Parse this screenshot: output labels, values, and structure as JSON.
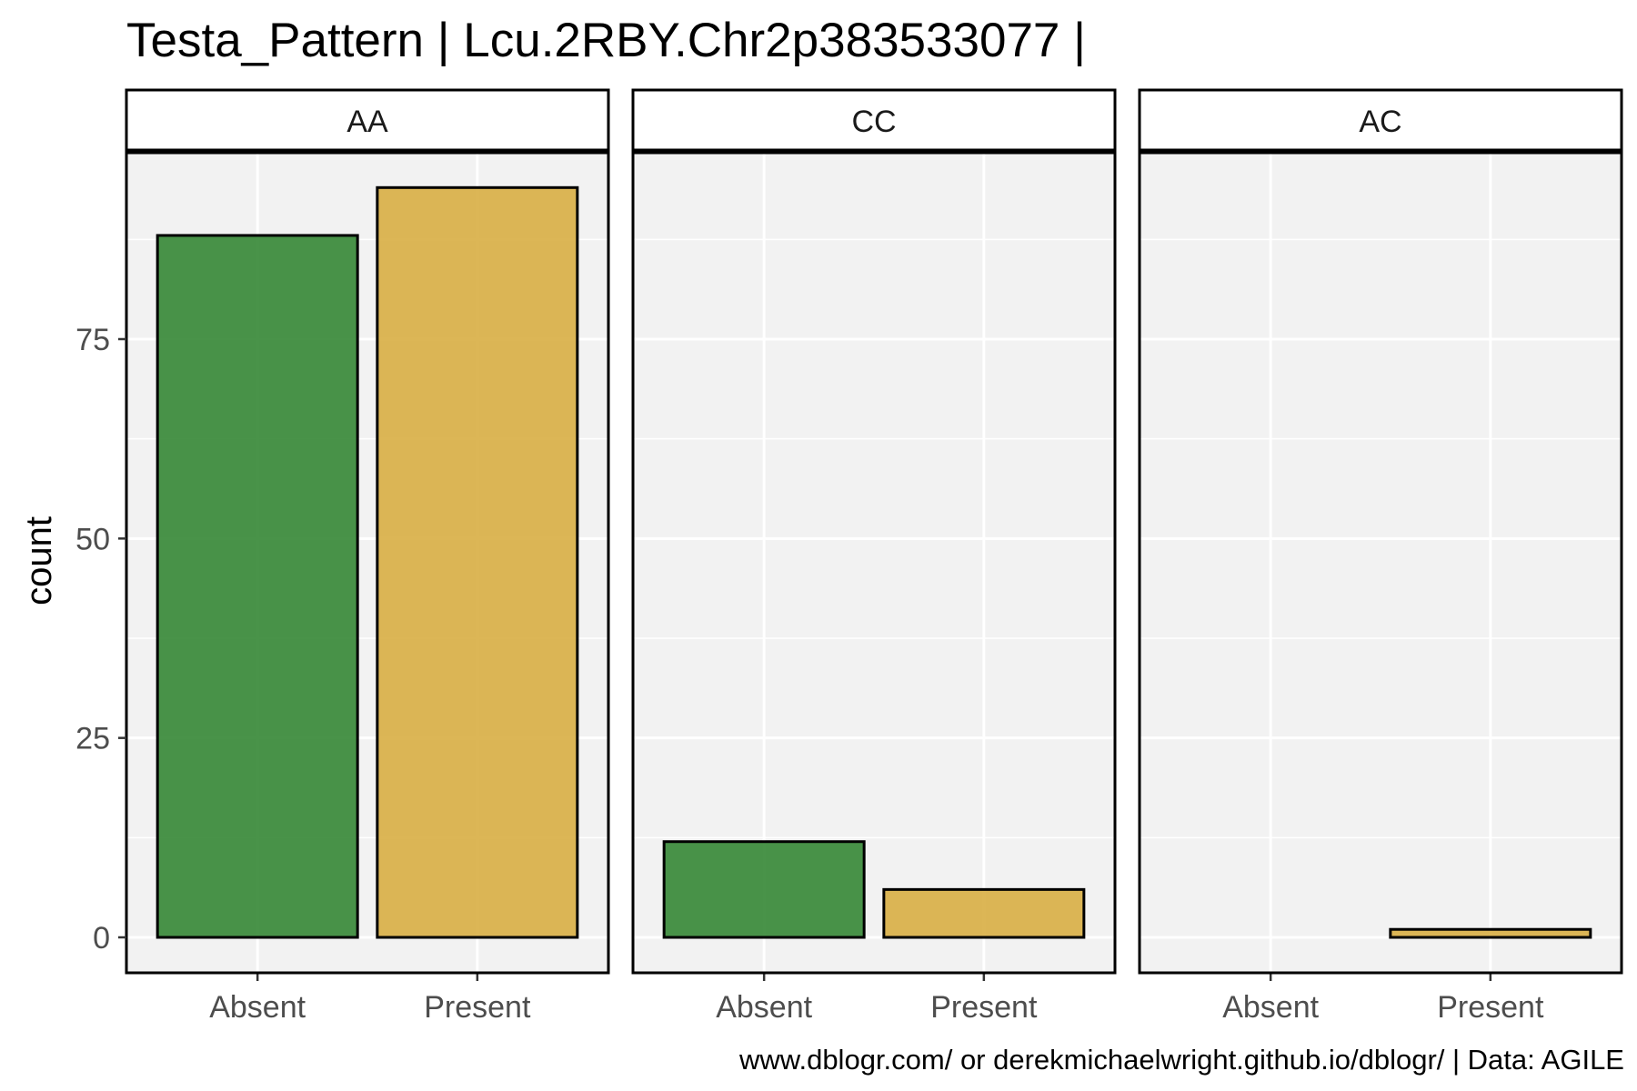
{
  "chart_data": {
    "type": "bar",
    "title": "Testa_Pattern | Lcu.2RBY.Chr2p383533077 |",
    "caption": "www.dblogr.com/ or derekmichaelwright.github.io/dblogr/ | Data: AGILE",
    "xlabel": "",
    "ylabel": "count",
    "categories": [
      "Absent",
      "Present"
    ],
    "ylim": [
      0,
      99
    ],
    "yticks": [
      0,
      25,
      50,
      75
    ],
    "grid": true,
    "colors": {
      "Absent": "#3a8a3a",
      "Present": "#d9b048"
    },
    "panel_background": "#f2f2f2",
    "facets": [
      {
        "label": "AA",
        "values": [
          88,
          94
        ]
      },
      {
        "label": "CC",
        "values": [
          12,
          6
        ]
      },
      {
        "label": "AC",
        "values": [
          0,
          1
        ]
      }
    ]
  }
}
